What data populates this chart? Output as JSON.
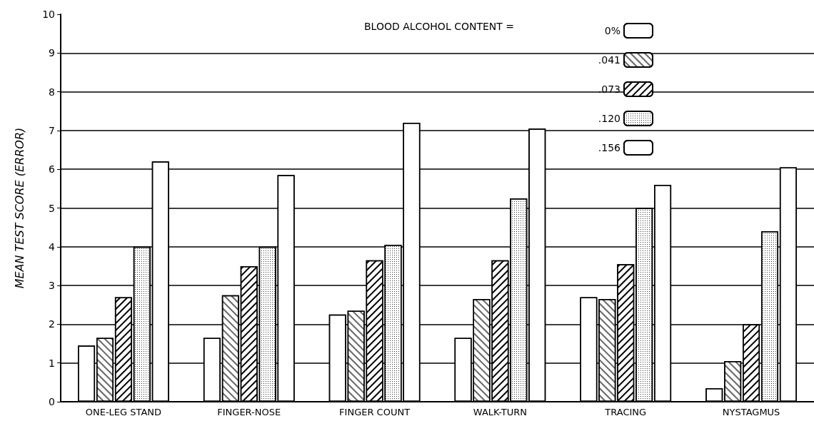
{
  "chart_data": {
    "type": "bar",
    "ylabel": "MEAN TEST SCORE (ERROR)",
    "legend_title": "BLOOD ALCOHOL CONTENT =",
    "categories": [
      "ONE-LEG STAND",
      "FINGER-NOSE",
      "FINGER COUNT",
      "WALK-TURN",
      "TRACING",
      "NYSTAGMUS"
    ],
    "series": [
      {
        "name": "0%",
        "color": "#ffffff",
        "values": [
          1.45,
          1.65,
          2.25,
          1.65,
          2.7,
          0.35
        ]
      },
      {
        "name": ".041",
        "color": "#ffffff",
        "values": [
          1.65,
          2.75,
          2.35,
          2.65,
          2.65,
          1.05
        ]
      },
      {
        "name": ".073",
        "color": "#ffffff",
        "values": [
          2.7,
          3.5,
          3.65,
          3.65,
          3.55,
          2.0
        ]
      },
      {
        "name": ".120",
        "color": "#ffffff",
        "values": [
          4.0,
          4.0,
          4.05,
          5.25,
          5.0,
          4.4
        ]
      },
      {
        "name": ".156",
        "color": "#ffffff",
        "values": [
          6.2,
          5.85,
          7.2,
          7.05,
          5.6,
          6.05
        ]
      }
    ],
    "ylim": [
      0,
      10
    ],
    "yticks": [
      0,
      1,
      2,
      3,
      4,
      5,
      6,
      7,
      8,
      9,
      10
    ],
    "grid": "y",
    "legend": "top right"
  }
}
